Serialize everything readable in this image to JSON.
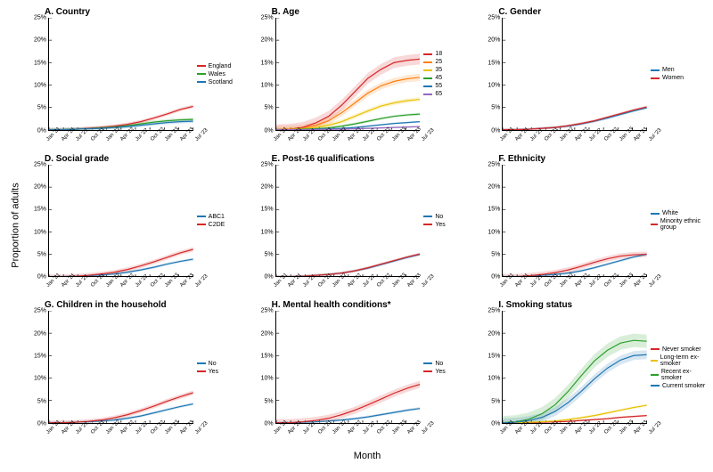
{
  "global": {
    "ylabel": "Proportion of adults",
    "xlabel": "Month",
    "ylim": [
      0,
      25
    ],
    "yticks": [
      0,
      5,
      10,
      15,
      20,
      25
    ],
    "ytick_labels": [
      "0%",
      "5%",
      "10%",
      "15%",
      "20%",
      "25%"
    ],
    "xtick_labels": [
      "Jan '21",
      "Apr '21",
      "Jul '21",
      "Oct '21",
      "Jan '22",
      "Apr '22",
      "Jul '22",
      "Oct '22",
      "Jan '23",
      "Apr '23",
      "Jul '23"
    ],
    "background_color": "#ffffff",
    "axis_color": "#000000",
    "label_fontsize": 11,
    "title_fontsize": 10,
    "tick_fontsize": 7
  },
  "panels": [
    {
      "id": "A",
      "title": "A. Country",
      "series": [
        {
          "label": "England",
          "color": "#d62728",
          "values": [
            0,
            0,
            0.1,
            0.3,
            0.5,
            0.8,
            1.2,
            1.8,
            2.6,
            3.5,
            4.5,
            5.2
          ],
          "ci": 0.4
        },
        {
          "label": "Wales",
          "color": "#2ca02c",
          "values": [
            0,
            0,
            0.1,
            0.2,
            0.4,
            0.6,
            0.9,
            1.3,
            1.7,
            2.0,
            2.2,
            2.3
          ],
          "ci": 0.4
        },
        {
          "label": "Scotland",
          "color": "#1f77b4",
          "values": [
            0,
            0,
            0.1,
            0.2,
            0.3,
            0.5,
            0.7,
            1.0,
            1.3,
            1.6,
            1.8,
            1.9
          ],
          "ci": 0.4
        }
      ]
    },
    {
      "id": "B",
      "title": "B. Age",
      "series": [
        {
          "label": "18",
          "color": "#d62728",
          "values": [
            0,
            0.1,
            0.5,
            1.5,
            3.0,
            5.5,
            8.5,
            11.5,
            13.5,
            15.0,
            15.5,
            15.8
          ],
          "ci": 1.2
        },
        {
          "label": "25",
          "color": "#ff7f0e",
          "values": [
            0,
            0.1,
            0.3,
            1.0,
            2.0,
            3.8,
            6.0,
            8.2,
            9.8,
            10.8,
            11.4,
            11.7
          ],
          "ci": 0.8
        },
        {
          "label": "35",
          "color": "#e8c100",
          "values": [
            0,
            0,
            0.2,
            0.5,
            1.0,
            1.8,
            3.0,
            4.2,
            5.3,
            6.0,
            6.5,
            6.8
          ],
          "ci": 0.5
        },
        {
          "label": "45",
          "color": "#2ca02c",
          "values": [
            0,
            0,
            0.1,
            0.2,
            0.4,
            0.8,
            1.3,
            1.9,
            2.5,
            3.0,
            3.3,
            3.5
          ],
          "ci": 0.3
        },
        {
          "label": "55",
          "color": "#1f77b4",
          "values": [
            0,
            0,
            0,
            0.1,
            0.2,
            0.3,
            0.5,
            0.8,
            1.1,
            1.4,
            1.6,
            1.8
          ],
          "ci": 0.2
        },
        {
          "label": "65",
          "color": "#9467bd",
          "values": [
            0,
            0,
            0,
            0,
            0.1,
            0.1,
            0.2,
            0.3,
            0.4,
            0.5,
            0.6,
            0.7
          ],
          "ci": 0.2
        }
      ]
    },
    {
      "id": "C",
      "title": "C. Gender",
      "series": [
        {
          "label": "Men",
          "color": "#1f77b4",
          "values": [
            0,
            0,
            0.1,
            0.3,
            0.5,
            0.8,
            1.3,
            1.9,
            2.6,
            3.4,
            4.2,
            4.9
          ],
          "ci": 0.3
        },
        {
          "label": "Women",
          "color": "#d62728",
          "values": [
            0,
            0,
            0.1,
            0.3,
            0.5,
            0.9,
            1.4,
            2.0,
            2.8,
            3.6,
            4.4,
            5.1
          ],
          "ci": 0.3
        }
      ]
    },
    {
      "id": "D",
      "title": "D. Social grade",
      "series": [
        {
          "label": "ABC1",
          "color": "#1f77b4",
          "values": [
            0,
            0,
            0.1,
            0.2,
            0.4,
            0.6,
            1.0,
            1.5,
            2.1,
            2.8,
            3.4,
            3.9
          ],
          "ci": 0.3
        },
        {
          "label": "C2DE",
          "color": "#d62728",
          "values": [
            0,
            0,
            0.1,
            0.3,
            0.6,
            1.0,
            1.6,
            2.4,
            3.3,
            4.3,
            5.3,
            6.1
          ],
          "ci": 0.5
        }
      ]
    },
    {
      "id": "E",
      "title": "E. Post-16 qualifications",
      "series": [
        {
          "label": "No",
          "color": "#1f77b4",
          "values": [
            0,
            0,
            0.1,
            0.3,
            0.5,
            0.8,
            1.3,
            1.9,
            2.7,
            3.5,
            4.3,
            5.0
          ],
          "ci": 0.3
        },
        {
          "label": "Yes",
          "color": "#d62728",
          "values": [
            0,
            0,
            0.1,
            0.3,
            0.5,
            0.8,
            1.3,
            2.0,
            2.8,
            3.6,
            4.4,
            5.1
          ],
          "ci": 0.3
        }
      ]
    },
    {
      "id": "F",
      "title": "F. Ethnicity",
      "series": [
        {
          "label": "White",
          "color": "#1f77b4",
          "values": [
            0,
            0,
            0.1,
            0.3,
            0.5,
            0.8,
            1.3,
            2.0,
            2.8,
            3.6,
            4.4,
            5.0
          ],
          "ci": 0.3
        },
        {
          "label": "Minority ethnic group",
          "color": "#d62728",
          "values": [
            0,
            0,
            0.2,
            0.5,
            0.9,
            1.5,
            2.3,
            3.2,
            4.0,
            4.6,
            4.9,
            5.0
          ],
          "ci": 0.6
        }
      ]
    },
    {
      "id": "G",
      "title": "G. Children in the household",
      "series": [
        {
          "label": "No",
          "color": "#1f77b4",
          "values": [
            0,
            0,
            0.1,
            0.2,
            0.4,
            0.6,
            1.0,
            1.5,
            2.2,
            2.9,
            3.6,
            4.2
          ],
          "ci": 0.3
        },
        {
          "label": "Yes",
          "color": "#d62728",
          "values": [
            0,
            0,
            0.1,
            0.3,
            0.6,
            1.1,
            1.8,
            2.7,
            3.7,
            4.8,
            5.8,
            6.7
          ],
          "ci": 0.5
        }
      ]
    },
    {
      "id": "H",
      "title": "H. Mental health conditions*",
      "series": [
        {
          "label": "No",
          "color": "#1f77b4",
          "values": [
            0,
            0,
            0.1,
            0.2,
            0.4,
            0.6,
            0.9,
            1.3,
            1.8,
            2.3,
            2.8,
            3.2
          ],
          "ci": 0.3
        },
        {
          "label": "Yes",
          "color": "#d62728",
          "values": [
            0,
            0,
            0.2,
            0.5,
            1.0,
            1.8,
            2.8,
            4.0,
            5.3,
            6.6,
            7.7,
            8.6
          ],
          "ci": 0.8
        }
      ]
    },
    {
      "id": "I",
      "title": "I. Smoking status",
      "series": [
        {
          "label": "Never smoker",
          "color": "#d62728",
          "values": [
            0,
            0,
            0,
            0.1,
            0.2,
            0.3,
            0.5,
            0.7,
            0.9,
            1.2,
            1.4,
            1.6
          ],
          "ci": 0.2
        },
        {
          "label": "Long-term ex-smoker",
          "color": "#e8c100",
          "values": [
            0,
            0,
            0.1,
            0.2,
            0.4,
            0.7,
            1.1,
            1.6,
            2.2,
            2.8,
            3.4,
            3.9
          ],
          "ci": 0.3
        },
        {
          "label": "Recent ex-smoker",
          "color": "#2ca02c",
          "values": [
            0,
            0.2,
            0.8,
            2.0,
            4.0,
            7.0,
            10.5,
            13.8,
            16.2,
            17.8,
            18.4,
            18.2
          ],
          "ci": 1.5
        },
        {
          "label": "Current smoker",
          "color": "#1f77b4",
          "values": [
            0,
            0.1,
            0.5,
            1.2,
            2.5,
            4.5,
            7.0,
            9.8,
            12.2,
            14.0,
            15.0,
            15.2
          ],
          "ci": 1.0
        }
      ]
    }
  ]
}
